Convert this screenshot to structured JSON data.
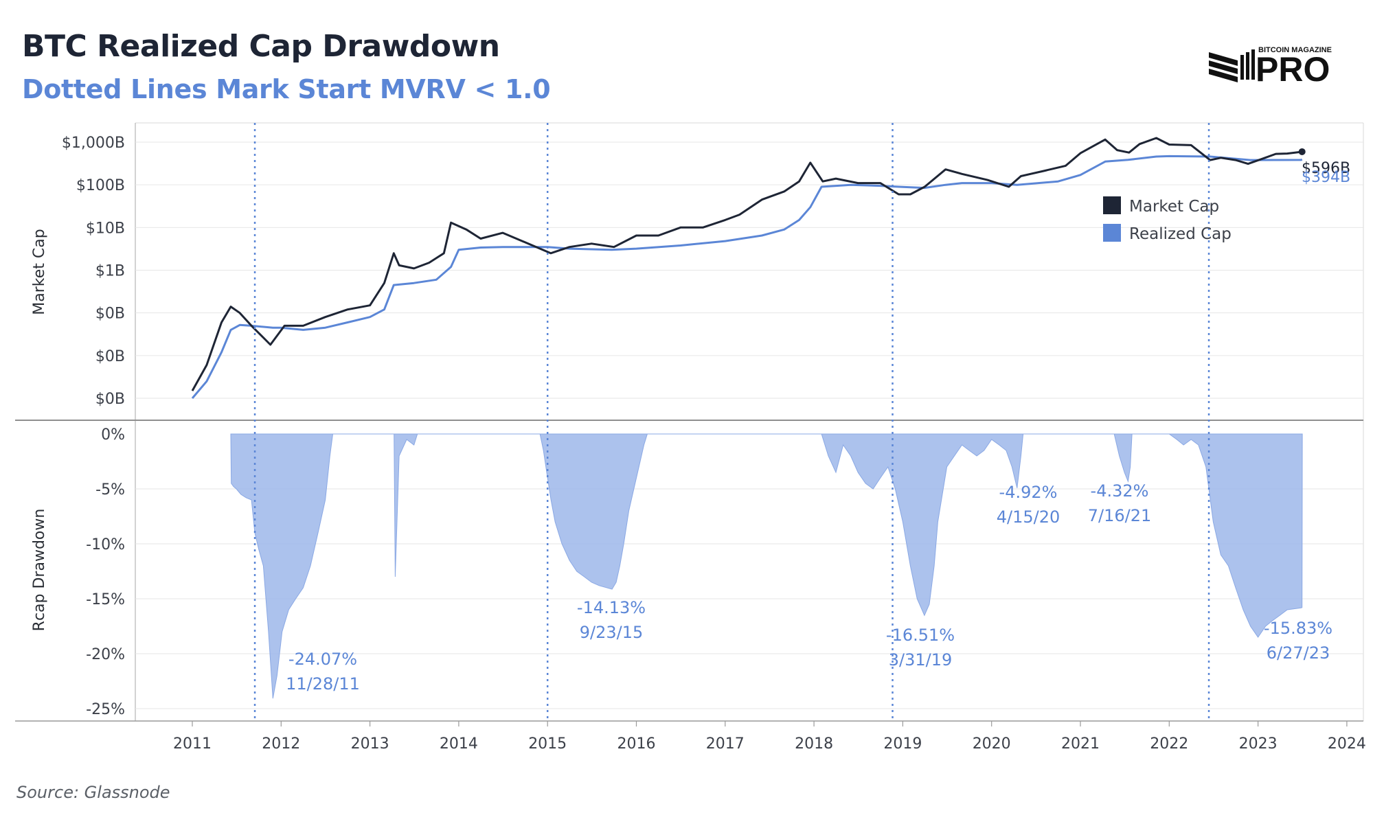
{
  "title": "BTC Realized Cap Drawdown",
  "subtitle": "Dotted Lines Mark Start MVRV < 1.0",
  "source": "Source: Glassnode",
  "logo": {
    "small_text": "BITCOIN MAGAZINE",
    "big_text": "PRO"
  },
  "colors": {
    "market_cap": "#1e2535",
    "realized_cap": "#5b86d6",
    "drawdown_fill": "#9db7ea",
    "grid": "#e6e6e6",
    "axis": "#9a9a9a"
  },
  "chart_data": [
    {
      "type": "line",
      "ylabel": "Market Cap",
      "y_scale": "log",
      "y_tick_labels": [
        "$1,000B",
        "$100B",
        "$10B",
        "$1B",
        "$0B",
        "$0B",
        "$0B"
      ],
      "y_tick_values": [
        1000000000000,
        100000000000,
        10000000000,
        1000000000,
        100000000,
        10000000,
        1000000
      ],
      "x_tick_labels": [
        "2011",
        "2012",
        "2013",
        "2014",
        "2015",
        "2016",
        "2017",
        "2018",
        "2019",
        "2020",
        "2021",
        "2022",
        "2023",
        "2024"
      ],
      "legend": [
        "Market Cap",
        "Realized Cap"
      ],
      "legend_position": "right",
      "end_labels": {
        "market_cap": "$596B",
        "realized_cap": "$394B"
      },
      "series": [
        {
          "name": "Market Cap",
          "x": [
            "2011-01-01",
            "2011-03-01",
            "2011-05-01",
            "2011-06-08",
            "2011-07-15",
            "2011-09-01",
            "2011-11-18",
            "2012-01-15",
            "2012-04-01",
            "2012-07-01",
            "2012-10-01",
            "2013-01-01",
            "2013-03-01",
            "2013-04-09",
            "2013-05-01",
            "2013-07-01",
            "2013-09-01",
            "2013-11-01",
            "2013-11-30",
            "2014-02-01",
            "2014-04-01",
            "2014-07-01",
            "2014-10-01",
            "2015-01-14",
            "2015-04-01",
            "2015-07-01",
            "2015-10-01",
            "2016-01-01",
            "2016-04-01",
            "2016-07-01",
            "2016-10-01",
            "2017-01-01",
            "2017-03-01",
            "2017-06-01",
            "2017-09-01",
            "2017-11-01",
            "2017-12-17",
            "2018-02-06",
            "2018-04-01",
            "2018-07-01",
            "2018-10-01",
            "2018-12-15",
            "2019-02-01",
            "2019-04-01",
            "2019-06-26",
            "2019-09-01",
            "2019-12-15",
            "2020-03-12",
            "2020-05-01",
            "2020-08-01",
            "2020-11-01",
            "2021-01-01",
            "2021-04-13",
            "2021-06-01",
            "2021-07-20",
            "2021-09-01",
            "2021-11-09",
            "2022-01-01",
            "2022-04-01",
            "2022-06-18",
            "2022-08-01",
            "2022-10-01",
            "2022-11-21",
            "2023-01-15",
            "2023-03-15",
            "2023-05-01",
            "2023-07-01"
          ],
          "y": [
            1500000,
            6000000,
            60000000,
            140000000,
            100000000,
            50000000,
            18000000,
            50000000,
            50000000,
            80000000,
            120000000,
            150000000,
            500000000,
            2500000000,
            1300000000,
            1100000000,
            1500000000,
            2500000000,
            13000000000,
            9000000000,
            5500000000,
            7500000000,
            4500000000,
            2500000000,
            3500000000,
            4200000000,
            3500000000,
            6500000000,
            6500000000,
            10000000000,
            10000000000,
            15000000000,
            20000000000,
            45000000000,
            70000000000,
            120000000000,
            330000000000,
            120000000000,
            140000000000,
            110000000000,
            110000000000,
            60000000000,
            60000000000,
            90000000000,
            230000000000,
            180000000000,
            130000000000,
            90000000000,
            160000000000,
            210000000000,
            280000000000,
            550000000000,
            1150000000000,
            650000000000,
            570000000000,
            900000000000,
            1250000000000,
            880000000000,
            850000000000,
            380000000000,
            430000000000,
            380000000000,
            310000000000,
            400000000000,
            530000000000,
            540000000000,
            596000000000
          ]
        },
        {
          "name": "Realized Cap",
          "x": [
            "2011-01-01",
            "2011-03-01",
            "2011-05-01",
            "2011-06-08",
            "2011-07-15",
            "2011-09-01",
            "2011-11-28",
            "2012-01-01",
            "2012-04-01",
            "2012-07-01",
            "2012-10-01",
            "2013-01-01",
            "2013-03-01",
            "2013-04-09",
            "2013-07-01",
            "2013-10-01",
            "2013-11-30",
            "2014-01-01",
            "2014-04-01",
            "2014-07-01",
            "2014-10-01",
            "2015-01-01",
            "2015-04-01",
            "2015-07-01",
            "2015-09-23",
            "2016-01-01",
            "2016-07-01",
            "2017-01-01",
            "2017-06-01",
            "2017-09-01",
            "2017-11-01",
            "2017-12-17",
            "2018-02-01",
            "2018-06-01",
            "2018-10-01",
            "2018-12-15",
            "2019-03-31",
            "2019-06-26",
            "2019-09-01",
            "2020-01-01",
            "2020-04-15",
            "2020-10-01",
            "2021-01-01",
            "2021-04-13",
            "2021-07-16",
            "2021-11-09",
            "2022-01-01",
            "2022-06-18",
            "2022-12-01",
            "2023-06-27",
            "2023-07-01"
          ],
          "y": [
            1000000,
            2500000,
            12000000,
            40000000,
            52000000,
            50000000,
            45000000,
            45000000,
            40000000,
            45000000,
            60000000,
            80000000,
            120000000,
            450000000,
            500000000,
            600000000,
            1200000000,
            3000000000,
            3400000000,
            3500000000,
            3500000000,
            3500000000,
            3200000000,
            3100000000,
            3000000000,
            3200000000,
            3800000000,
            4800000000,
            6500000000,
            9000000000,
            15000000000,
            30000000000,
            90000000000,
            100000000000,
            95000000000,
            90000000000,
            85000000000,
            100000000000,
            110000000000,
            110000000000,
            100000000000,
            120000000000,
            170000000000,
            350000000000,
            385000000000,
            460000000000,
            470000000000,
            460000000000,
            380000000000,
            383000000000,
            394000000000
          ]
        }
      ]
    },
    {
      "type": "area",
      "ylabel": "Rcap Drawdown",
      "ylim": [
        -25,
        0
      ],
      "y_ticks": [
        "0%",
        "-5%",
        "-10%",
        "-15%",
        "-20%",
        "-25%"
      ],
      "y_tick_values": [
        0,
        -5,
        -10,
        -15,
        -20,
        -25
      ],
      "x_tick_labels": [
        "2011",
        "2012",
        "2013",
        "2014",
        "2015",
        "2016",
        "2017",
        "2018",
        "2019",
        "2020",
        "2021",
        "2022",
        "2023",
        "2024"
      ],
      "series": [
        {
          "name": "Rcap Drawdown",
          "x": [
            "2011-06-08",
            "2011-06-10",
            "2011-06-20",
            "2011-07-01",
            "2011-07-20",
            "2011-08-10",
            "2011-09-01",
            "2011-09-15",
            "2011-10-01",
            "2011-10-20",
            "2011-11-10",
            "2011-11-28",
            "2011-12-15",
            "2012-01-05",
            "2012-02-01",
            "2012-03-01",
            "2012-04-01",
            "2012-05-01",
            "2012-06-01",
            "2012-07-01",
            "2012-07-20",
            "2012-08-01",
            "2013-04-10",
            "2013-04-15",
            "2013-05-01",
            "2013-06-01",
            "2013-07-01",
            "2013-07-15",
            "2014-12-01",
            "2014-12-15",
            "2015-01-01",
            "2015-01-15",
            "2015-02-01",
            "2015-03-01",
            "2015-04-01",
            "2015-05-01",
            "2015-06-01",
            "2015-07-01",
            "2015-08-01",
            "2015-09-23",
            "2015-10-10",
            "2015-10-25",
            "2015-11-10",
            "2015-12-01",
            "2016-01-01",
            "2016-02-01",
            "2016-02-15",
            "2018-02-01",
            "2018-03-01",
            "2018-04-01",
            "2018-05-01",
            "2018-06-01",
            "2018-07-01",
            "2018-08-01",
            "2018-09-01",
            "2018-10-01",
            "2018-11-01",
            "2018-12-01",
            "2019-01-01",
            "2019-02-01",
            "2019-03-01",
            "2019-03-31",
            "2019-04-20",
            "2019-05-10",
            "2019-05-25",
            "2019-07-01",
            "2019-09-01",
            "2019-10-01",
            "2019-11-01",
            "2019-12-01",
            "2020-01-01",
            "2020-02-01",
            "2020-03-01",
            "2020-03-25",
            "2020-04-15",
            "2020-05-01",
            "2020-05-10",
            "2021-05-20",
            "2021-06-10",
            "2021-07-01",
            "2021-07-16",
            "2021-07-25",
            "2021-08-01",
            "2022-01-01",
            "2022-02-01",
            "2022-03-01",
            "2022-04-01",
            "2022-05-01",
            "2022-06-01",
            "2022-07-01",
            "2022-08-01",
            "2022-09-01",
            "2022-10-01",
            "2022-11-01",
            "2022-12-01",
            "2023-01-01",
            "2023-02-01",
            "2023-03-01",
            "2023-04-01",
            "2023-05-01",
            "2023-06-27",
            "2023-07-01",
            "2023-07-02"
          ],
          "y": [
            0,
            -4.5,
            -4.8,
            -5,
            -5.5,
            -5.8,
            -6,
            -9,
            -10.5,
            -12,
            -18,
            -24.07,
            -22,
            -18,
            -16,
            -15,
            -14,
            -12,
            -9,
            -6,
            -2,
            0,
            0,
            -13,
            -2,
            -0.5,
            -1,
            0,
            0,
            -1.5,
            -4,
            -6,
            -8,
            -10,
            -11.5,
            -12.5,
            -13,
            -13.5,
            -13.8,
            -14.13,
            -13.5,
            -12,
            -10,
            -7,
            -4,
            -1,
            0,
            0,
            -2,
            -3.5,
            -1,
            -2,
            -3.5,
            -4.5,
            -5,
            -4,
            -3,
            -5,
            -8,
            -12,
            -15,
            -16.51,
            -15.5,
            -12,
            -8,
            -3,
            -1,
            -1.5,
            -2,
            -1.5,
            -0.5,
            -1,
            -1.5,
            -3,
            -4.92,
            -2,
            0,
            0,
            -2,
            -3.5,
            -4.32,
            -3,
            0,
            0,
            -0.5,
            -1,
            -0.5,
            -1,
            -3,
            -8,
            -11,
            -12,
            -14,
            -16,
            -17.5,
            -18.5,
            -17.5,
            -17,
            -16.5,
            -16,
            -15.83,
            -15.8,
            0
          ]
        }
      ],
      "annotations": [
        {
          "value": "-24.07%",
          "date": "11/28/11"
        },
        {
          "value": "-14.13%",
          "date": "9/23/15"
        },
        {
          "value": "-16.51%",
          "date": "3/31/19"
        },
        {
          "value": "-4.92%",
          "date": "4/15/20"
        },
        {
          "value": "-4.32%",
          "date": "7/16/21"
        },
        {
          "value": "-15.83%",
          "date": "6/27/23"
        }
      ],
      "dotted_lines": [
        "2011-09-15",
        "2015-01-01",
        "2018-11-20",
        "2022-06-13"
      ]
    }
  ]
}
